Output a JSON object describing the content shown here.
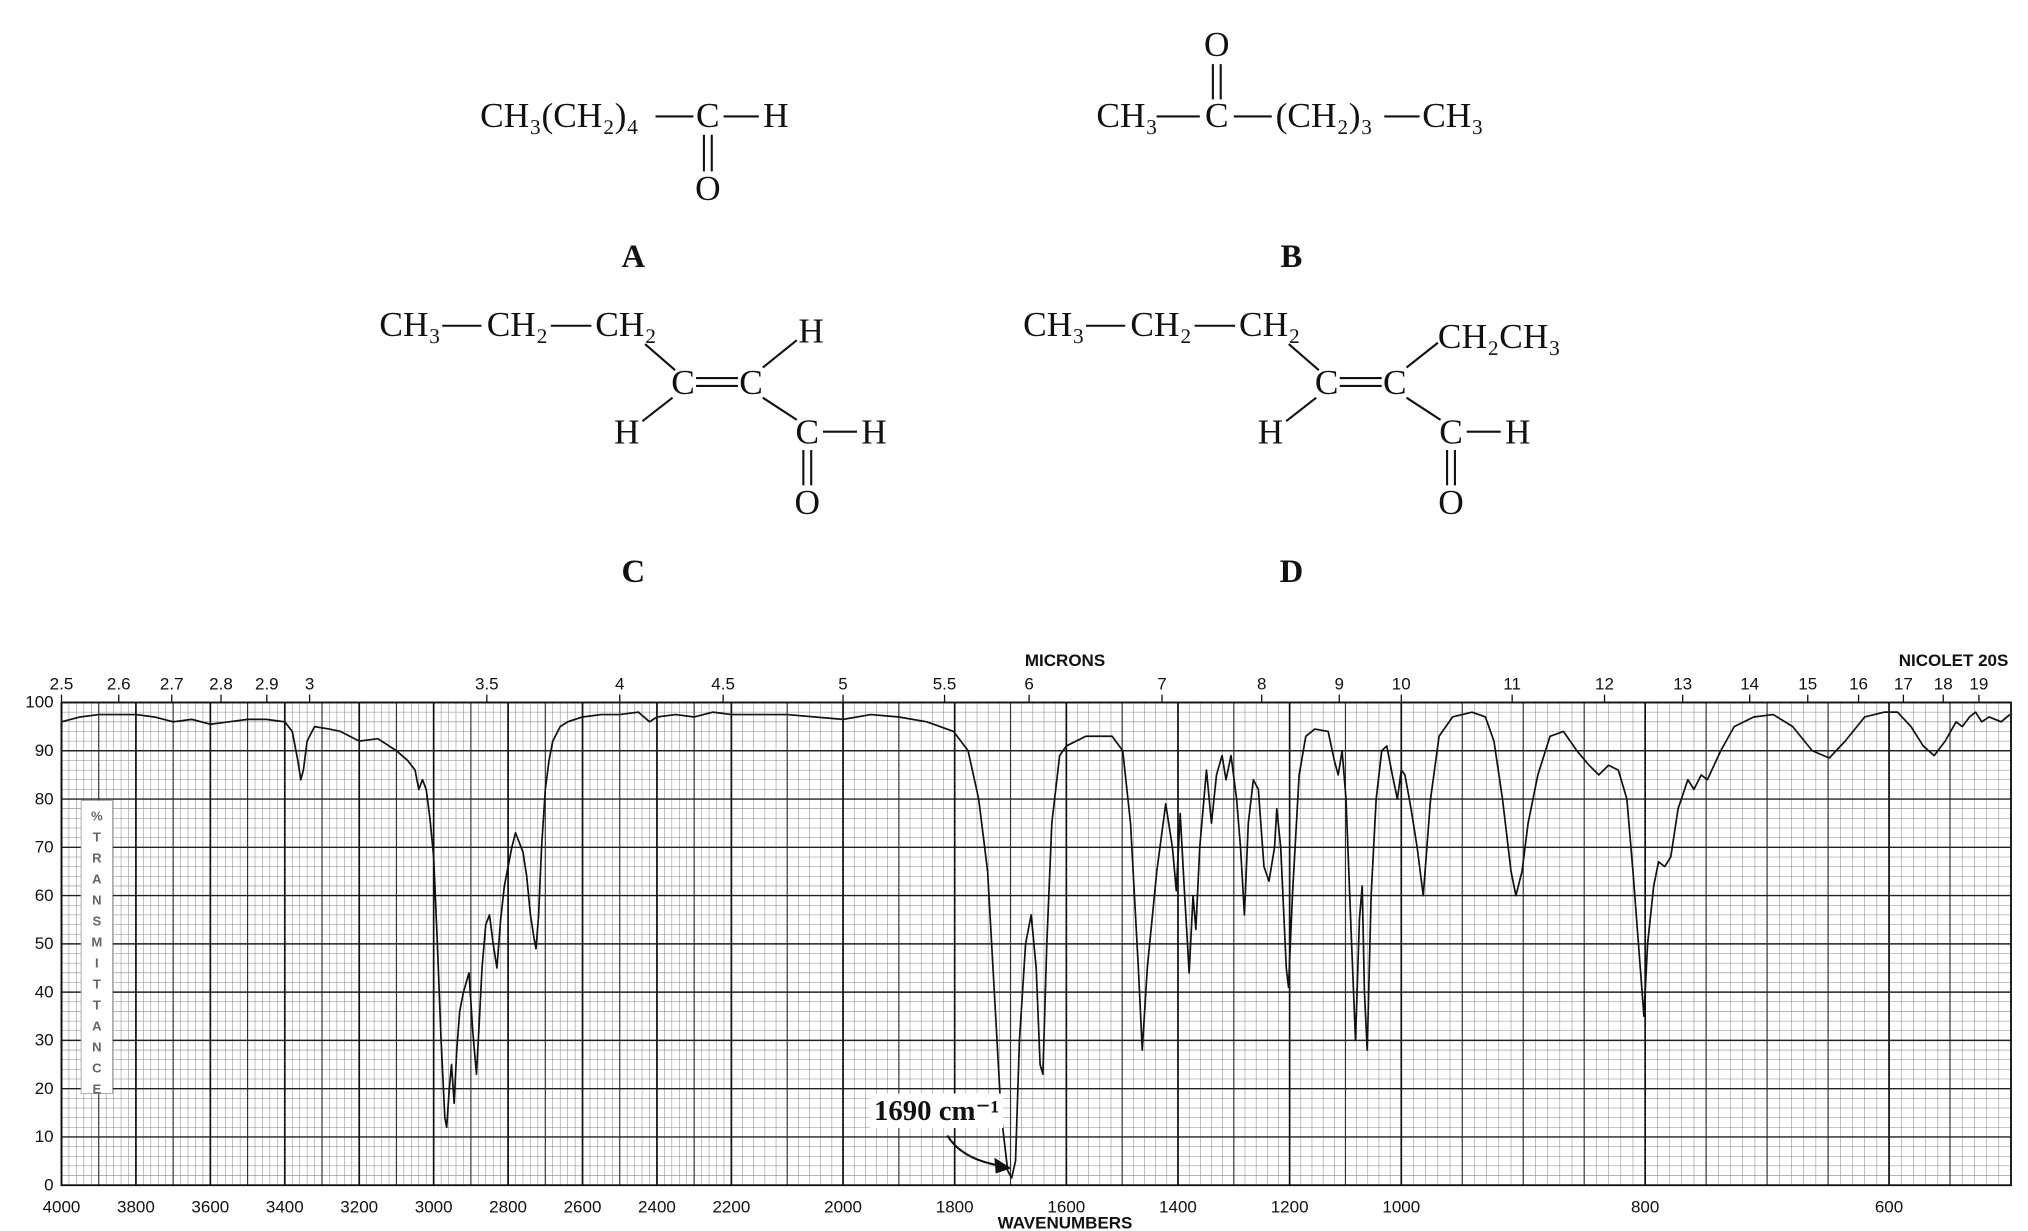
{
  "structures": [
    {
      "label": "A",
      "groups": [
        "CH₃(CH₂)₄",
        "C",
        "H",
        "O"
      ]
    },
    {
      "label": "B",
      "groups": [
        "CH₃",
        "C",
        "(CH₂)₃",
        "CH₃",
        "O"
      ]
    },
    {
      "label": "C",
      "groups": [
        "CH₃",
        "CH₂",
        "CH₂",
        "C",
        "C",
        "H",
        "H",
        "C",
        "H",
        "O"
      ]
    },
    {
      "label": "D",
      "groups": [
        "CH₃",
        "CH₂",
        "CH₂",
        "C",
        "C",
        "CH₂CH₃",
        "H",
        "C",
        "H",
        "O"
      ]
    }
  ],
  "chart_data": {
    "type": "line",
    "top_axis_label": "MICRONS",
    "instrument": "NICOLET 20S",
    "xlabel": "WAVENUMBERS",
    "ylabel": "%TRANSMITTANCE",
    "annotation": "1690 cm⁻¹",
    "color": "#111111",
    "grid": true,
    "xlim": [
      4000,
      500
    ],
    "xscale_breaks": [
      2200,
      1000
    ],
    "ylim": [
      0,
      100
    ],
    "xticks": [
      4000,
      3800,
      3600,
      3400,
      3200,
      3000,
      2800,
      2600,
      2400,
      2200,
      2000,
      1800,
      1600,
      1400,
      1200,
      1000,
      800,
      600
    ],
    "yticks": [
      0,
      10,
      20,
      30,
      40,
      50,
      60,
      70,
      80,
      90,
      100
    ],
    "micron_ticks": [
      2.5,
      2.6,
      2.7,
      2.8,
      2.9,
      3,
      3.5,
      4,
      4.5,
      5,
      5.5,
      6,
      7,
      8,
      9,
      10,
      11,
      12,
      13,
      14,
      15,
      16,
      17,
      18,
      19
    ],
    "x": [
      4000,
      3950,
      3900,
      3850,
      3800,
      3750,
      3700,
      3650,
      3600,
      3550,
      3500,
      3450,
      3400,
      3380,
      3365,
      3357,
      3350,
      3340,
      3320,
      3280,
      3250,
      3200,
      3150,
      3100,
      3070,
      3050,
      3040,
      3030,
      3020,
      3010,
      3000,
      2990,
      2980,
      2970,
      2965,
      2958,
      2952,
      2945,
      2938,
      2930,
      2920,
      2905,
      2895,
      2885,
      2880,
      2870,
      2860,
      2850,
      2840,
      2830,
      2820,
      2810,
      2790,
      2780,
      2770,
      2760,
      2750,
      2740,
      2730,
      2725,
      2718,
      2710,
      2700,
      2690,
      2680,
      2660,
      2640,
      2600,
      2550,
      2500,
      2450,
      2420,
      2400,
      2350,
      2300,
      2250,
      2200,
      2150,
      2100,
      2050,
      2000,
      1950,
      1900,
      1850,
      1802,
      1776,
      1757,
      1741,
      1729,
      1717,
      1705,
      1698,
      1691,
      1684,
      1673,
      1663,
      1654,
      1647,
      1642,
      1635,
      1626,
      1612,
      1600,
      1565,
      1518,
      1499,
      1485,
      1471,
      1464,
      1455,
      1438,
      1422,
      1410,
      1403,
      1396,
      1389,
      1380,
      1373,
      1368,
      1361,
      1349,
      1340,
      1331,
      1321,
      1314,
      1305,
      1295,
      1288,
      1281,
      1274,
      1265,
      1256,
      1246,
      1237,
      1227,
      1223,
      1216,
      1206,
      1202,
      1195,
      1183,
      1171,
      1155,
      1131,
      1120,
      1113,
      1106,
      1099,
      1089,
      1082,
      1075,
      1070,
      1066,
      1061,
      1054,
      1045,
      1035,
      1026,
      1016,
      1007,
      1000,
      997,
      992,
      987,
      982,
      976,
      969,
      958,
      942,
      931,
      924,
      917,
      910,
      906,
      901,
      896,
      888,
      878,
      867,
      856,
      846,
      838,
      830,
      822,
      815,
      810,
      804,
      801,
      798,
      793,
      789,
      784,
      779,
      773,
      765,
      760,
      754,
      749,
      738,
      727,
      711,
      695,
      679,
      663,
      649,
      636,
      620,
      604,
      593,
      582,
      572,
      563,
      554,
      545,
      540,
      534,
      529,
      524,
      518,
      508,
      501
    ],
    "values": [
      96,
      97,
      97.5,
      97.5,
      97.5,
      97,
      96,
      96.5,
      95.5,
      96,
      96.5,
      96.5,
      96,
      94,
      88,
      84,
      86,
      92,
      95,
      94.5,
      94,
      92,
      92.5,
      90,
      88,
      86,
      82,
      84,
      82,
      76,
      68,
      50,
      30,
      14,
      12,
      20,
      25,
      17,
      28,
      36,
      40,
      44,
      32,
      23,
      30,
      45,
      54,
      56,
      50,
      45,
      55,
      62,
      70,
      73,
      71,
      69,
      64,
      56,
      51,
      49,
      56,
      70,
      82,
      88,
      92,
      95,
      96,
      97,
      97.5,
      97.5,
      98,
      96,
      97,
      97.5,
      97,
      98,
      97.5,
      97.5,
      97.5,
      97,
      96.5,
      97.5,
      97,
      96,
      94,
      90,
      80,
      65,
      40,
      15,
      3,
      1.5,
      5,
      30,
      50,
      56,
      45,
      25,
      23,
      50,
      75,
      89,
      91,
      93,
      93,
      90,
      75,
      45,
      28,
      45,
      65,
      79,
      70,
      61,
      77,
      62,
      44,
      60,
      53,
      70,
      86,
      75,
      85,
      89,
      84,
      89,
      80,
      70,
      56,
      75,
      84,
      82,
      66,
      63,
      70,
      78,
      70,
      45,
      41,
      60,
      85,
      93,
      94.5,
      94,
      88,
      85,
      90,
      80,
      50,
      30,
      55,
      62,
      40,
      28,
      60,
      80,
      90,
      91,
      85,
      80,
      86,
      85,
      78,
      70,
      60,
      80,
      93,
      97,
      98,
      97,
      92,
      80,
      65,
      60,
      65,
      75,
      85,
      93,
      94,
      90,
      87,
      85,
      87,
      86,
      80,
      65,
      45,
      35,
      50,
      62,
      67,
      66,
      68,
      78,
      84,
      82,
      85,
      84,
      90,
      95,
      97,
      97.5,
      95,
      90,
      88.5,
      92,
      97,
      98,
      98,
      95,
      91,
      89,
      92,
      96,
      95,
      97,
      98,
      96,
      97,
      96,
      97.5
    ]
  }
}
